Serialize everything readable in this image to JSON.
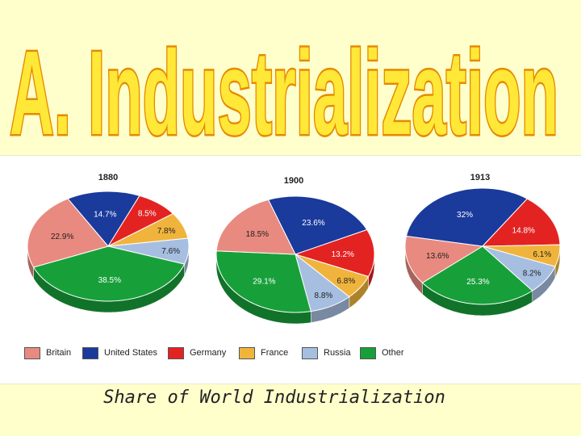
{
  "slide": {
    "title": "A. Industrialization",
    "caption": "Share of World Industrialization"
  },
  "colors": {
    "Britain": "#e88a80",
    "United States": "#1a3a9c",
    "Germany": "#e32322",
    "France": "#f0b43c",
    "Russia": "#a6bee0",
    "Other": "#17a03a",
    "title_fill": "#ffe838",
    "title_outline": "#e68a00"
  },
  "chart_data": [
    {
      "type": "pie",
      "title": "1880",
      "labels": [
        "United States",
        "Germany",
        "France",
        "Russia",
        "Other",
        "Britain"
      ],
      "values": [
        14.7,
        8.5,
        7.8,
        7.6,
        38.5,
        22.9
      ],
      "value_labels": [
        "14.7%",
        "8.5%",
        "7.8%",
        "7.6%",
        "38.5%",
        "22.9%"
      ]
    },
    {
      "type": "pie",
      "title": "1900",
      "labels": [
        "United States",
        "Germany",
        "France",
        "Russia",
        "Other",
        "Britain"
      ],
      "values": [
        23.6,
        13.2,
        6.8,
        8.8,
        29.1,
        18.5
      ],
      "value_labels": [
        "23.6%",
        "13.2%",
        "6.8%",
        "8.8%",
        "29.1%",
        "18.5%"
      ]
    },
    {
      "type": "pie",
      "title": "1913",
      "labels": [
        "United States",
        "Germany",
        "France",
        "Russia",
        "Other",
        "Britain"
      ],
      "values": [
        32,
        14.8,
        6.1,
        8.2,
        25.3,
        13.6
      ],
      "value_labels": [
        "32%",
        "14.8%",
        "6.1%",
        "8.2%",
        "25.3%",
        "13.6%"
      ]
    }
  ],
  "legend": [
    "Britain",
    "United States",
    "Germany",
    "France",
    "Russia",
    "Other"
  ]
}
